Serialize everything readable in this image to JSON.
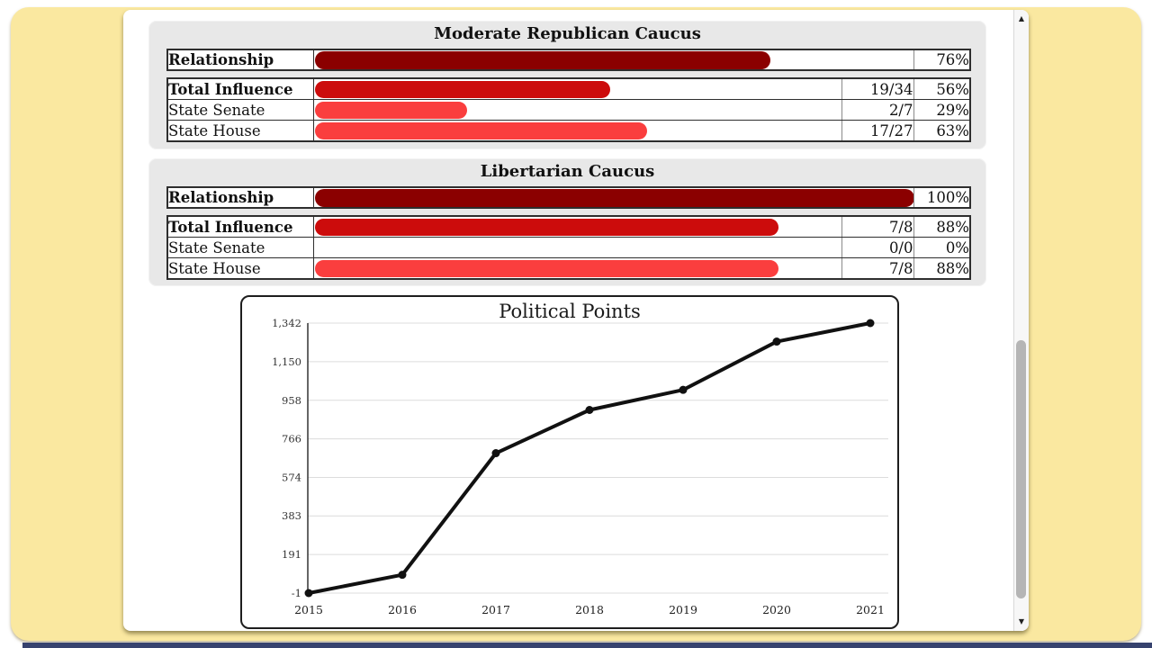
{
  "window": {
    "background_color": "#fae8a0",
    "bottom_bar_color": "#36426e",
    "panel_color": "#ffffff"
  },
  "scrollbar": {
    "up_icon": "▲",
    "down_icon": "▼"
  },
  "caucuses": [
    {
      "title": "Moderate Republican Caucus",
      "relationship": {
        "label": "Relationship",
        "percent": "76%",
        "value": 76,
        "color": "#8b0000"
      },
      "rows": [
        {
          "label": "Total Influence",
          "fraction": "19/34",
          "percent": "56%",
          "value": 56,
          "color": "#cc0c0c"
        },
        {
          "label": "State Senate",
          "fraction": "2/7",
          "percent": "29%",
          "value": 29,
          "color": "#fa3e3e"
        },
        {
          "label": "State House",
          "fraction": "17/27",
          "percent": "63%",
          "value": 63,
          "color": "#fa3e3e"
        }
      ]
    },
    {
      "title": "Libertarian Caucus",
      "relationship": {
        "label": "Relationship",
        "percent": "100%",
        "value": 100,
        "color": "#8b0000"
      },
      "rows": [
        {
          "label": "Total Influence",
          "fraction": "7/8",
          "percent": "88%",
          "value": 88,
          "color": "#cc0c0c"
        },
        {
          "label": "State Senate",
          "fraction": "0/0",
          "percent": "0%",
          "value": 0,
          "color": "#fa3e3e"
        },
        {
          "label": "State House",
          "fraction": "7/8",
          "percent": "88%",
          "value": 88,
          "color": "#fa3e3e"
        }
      ]
    }
  ],
  "chart_data": {
    "type": "line",
    "title": "Political Points",
    "x": [
      2015,
      2016,
      2017,
      2018,
      2019,
      2020,
      2021
    ],
    "values": [
      -1,
      90,
      695,
      910,
      1010,
      1250,
      1342
    ],
    "ylim": [
      -1,
      1342
    ],
    "y_ticks": [
      {
        "label": "1,342",
        "value": 1342
      },
      {
        "label": "1,150",
        "value": 1150
      },
      {
        "label": "958",
        "value": 958
      },
      {
        "label": "766",
        "value": 766
      },
      {
        "label": "574",
        "value": 574
      },
      {
        "label": "383",
        "value": 383
      },
      {
        "label": "191",
        "value": 191
      },
      {
        "label": "-1",
        "value": -1
      }
    ],
    "grid": true,
    "legend": "none",
    "line_color": "#111111",
    "marker": "circle"
  }
}
